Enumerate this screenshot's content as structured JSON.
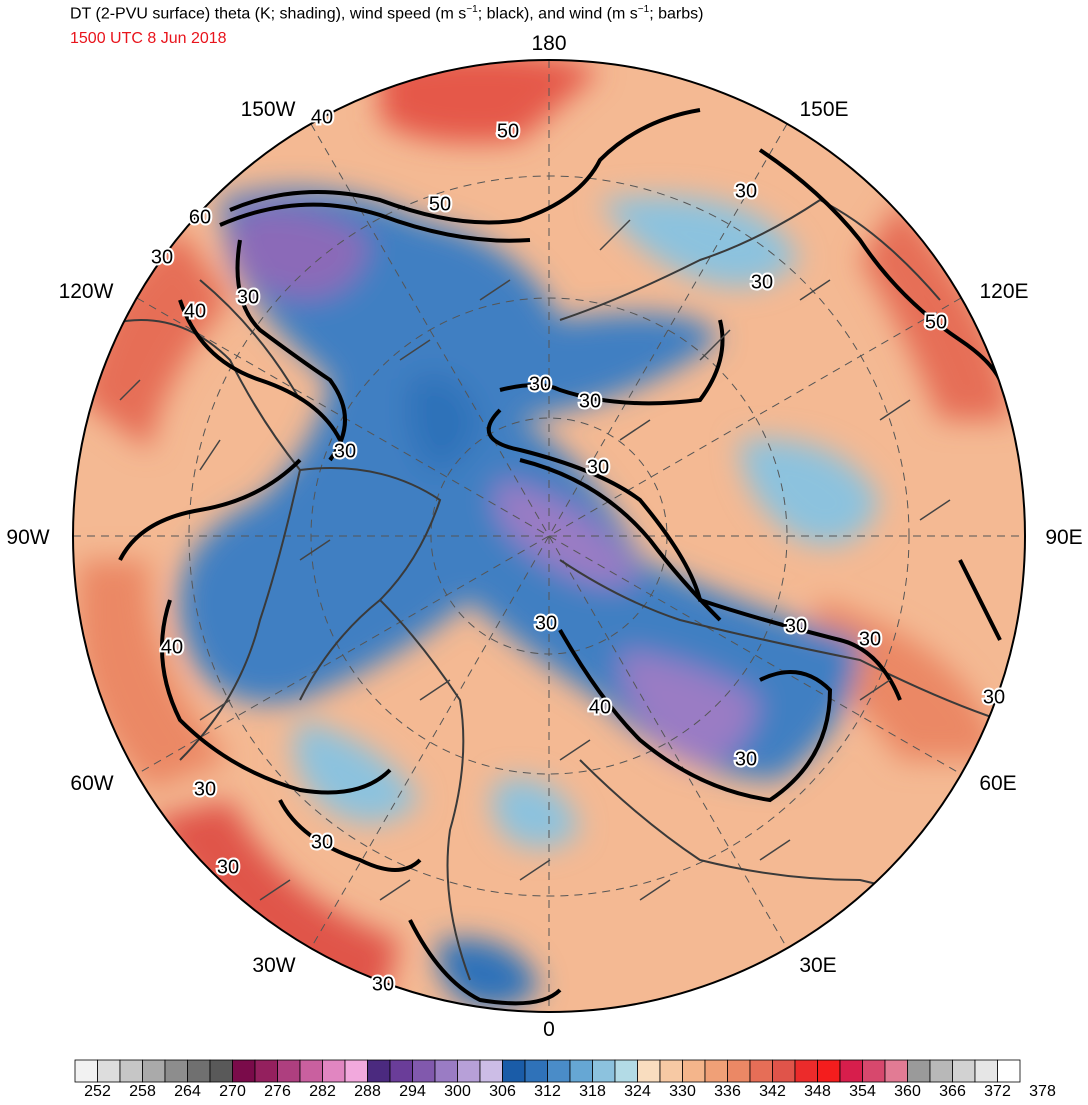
{
  "header": {
    "title": "DT (2-PVU surface) theta (K; shading), wind speed (m s",
    "title_unit_sup_1": "−1",
    "title_mid": "; black), and wind (m s",
    "title_unit_sup_2": "−1",
    "title_end": "; barbs)",
    "valid_time": "1500 UTC 8 Jun 2018",
    "valid_time_color": "#e8141c"
  },
  "map": {
    "projection": "north polar stereographic",
    "longitude_labels": {
      "top": "180",
      "top_right": "150E",
      "right_upper": "120E",
      "right": "90E",
      "right_lower": "60E",
      "bottom_right": "30E",
      "bottom": "0",
      "bottom_left": "30W",
      "left_lower": "60W",
      "left": "90W",
      "left_upper": "120W",
      "top_left": "150W"
    },
    "contour_labels": [
      "40",
      "50",
      "50",
      "60",
      "30",
      "40",
      "30",
      "30",
      "30",
      "30",
      "30",
      "30",
      "30",
      "30",
      "40",
      "30",
      "40",
      "30",
      "30",
      "30",
      "30",
      "30",
      "30",
      "30",
      "50"
    ]
  },
  "colorbar": {
    "tick_labels": [
      "252",
      "258",
      "264",
      "270",
      "276",
      "282",
      "288",
      "294",
      "300",
      "306",
      "312",
      "318",
      "324",
      "330",
      "336",
      "342",
      "348",
      "354",
      "360",
      "366",
      "372",
      "378"
    ],
    "colors": [
      "#f2f2f2",
      "#dddddd",
      "#c6c6c6",
      "#aaaaaa",
      "#8d8d8d",
      "#707070",
      "#595959",
      "#7a0b4a",
      "#94205e",
      "#ae3f7f",
      "#c9609f",
      "#e186c1",
      "#f2a9dd",
      "#4b2a7f",
      "#6a3d99",
      "#8159ad",
      "#9a7cc4",
      "#b7a0d8",
      "#ccbde6",
      "#1a5ca8",
      "#2f72b9",
      "#4a8cc8",
      "#66a7d4",
      "#8cc2de",
      "#b3dbe6",
      "#f9ddbf",
      "#f7c9a4",
      "#f4b58b",
      "#f0a077",
      "#eb8865",
      "#e66e57",
      "#e0544a",
      "#ec2b2b",
      "#f41d1d",
      "#d71e4c",
      "#d7486d",
      "#e27b94",
      "#9a9a9a",
      "#b8b8b8",
      "#d2d2d2",
      "#e6e6e6",
      "#ffffff"
    ]
  }
}
